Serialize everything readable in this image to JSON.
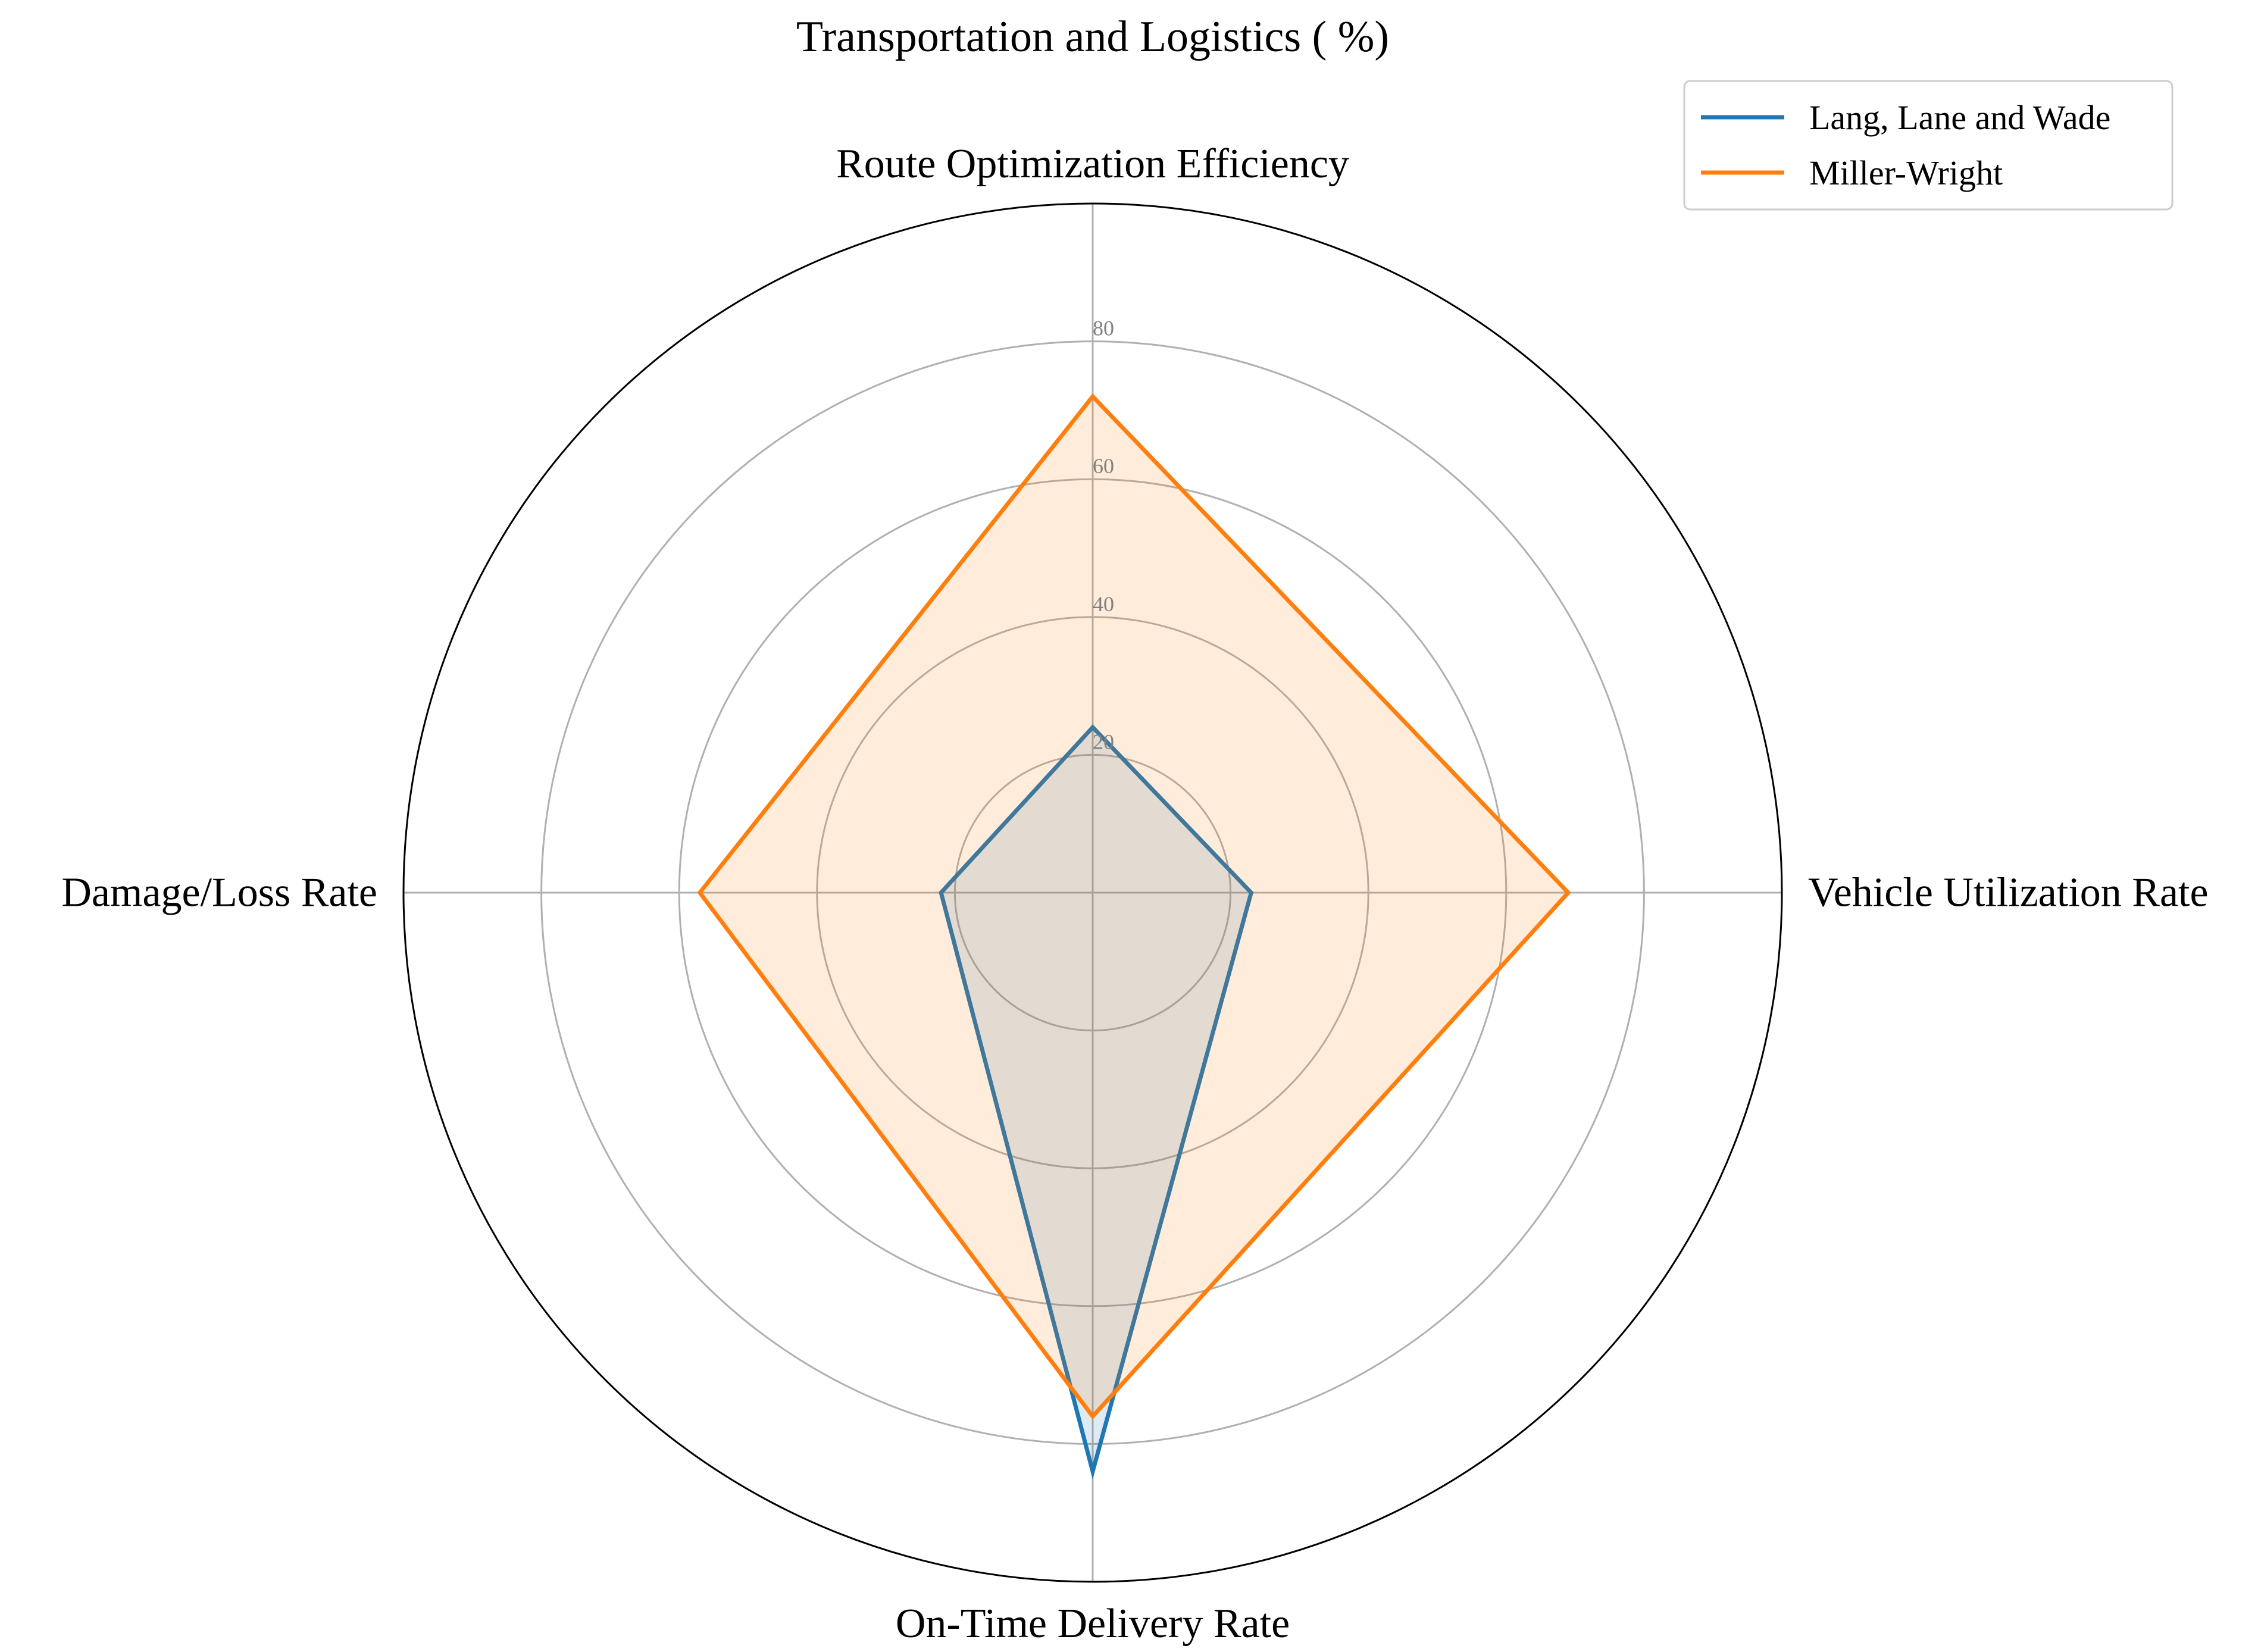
{
  "chart_data": {
    "type": "radar",
    "title": "Transportation and Logistics ( %)",
    "categories": [
      "Route Optimization Efficiency",
      "Vehicle Utilization Rate",
      "On-Time Delivery Rate",
      "Damage/Loss Rate"
    ],
    "radial_ticks": [
      "20",
      "40",
      "60",
      "80"
    ],
    "radial_tick_values": [
      20,
      40,
      60,
      80
    ],
    "rmax": 100,
    "series": [
      {
        "name": "Lang, Lane and Wade",
        "values": [
          24,
          23,
          84,
          22
        ],
        "color": "#1f77b4"
      },
      {
        "name": "Miller-Wright",
        "values": [
          72,
          69,
          76,
          57
        ],
        "color": "#ff7f0e"
      }
    ],
    "grid": true,
    "legend_position": "top-right"
  }
}
